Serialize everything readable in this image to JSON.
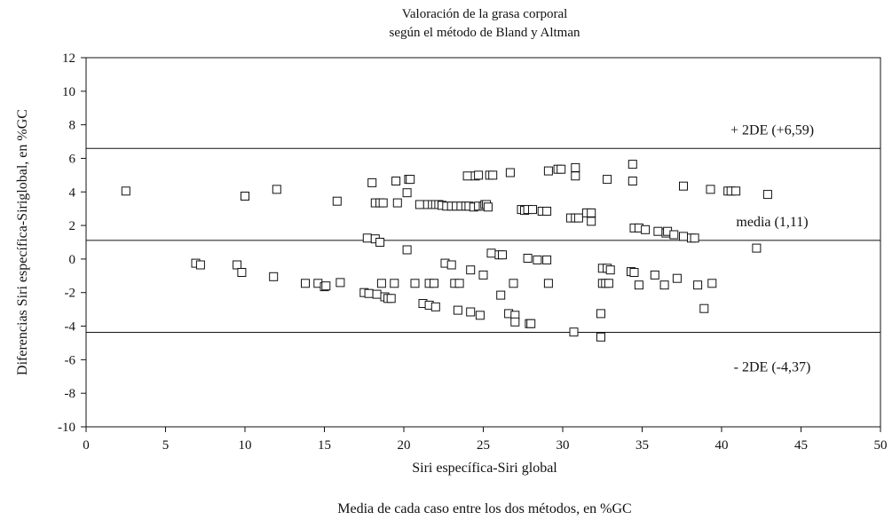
{
  "chart_data": {
    "type": "scatter",
    "title": "Valoración de la grasa corporal",
    "subtitle": "según el método de Bland y Altman",
    "xlabel": "Siri específica-Siri global",
    "ylabel": "Diferencias Siri específica-Siriglobal, en %GC",
    "caption": "Media de cada caso entre los dos métodos, en %GC",
    "xlim": [
      0,
      50
    ],
    "ylim": [
      -10,
      12
    ],
    "x_ticks": [
      "0",
      "5",
      "10",
      "15",
      "20",
      "25",
      "30",
      "35",
      "40",
      "45",
      "50"
    ],
    "y_ticks": [
      "12",
      "10",
      "8",
      "6",
      "4",
      "2",
      "0",
      "-2",
      "-4",
      "-6",
      "-8",
      "-10"
    ],
    "x_tick_values": [
      0,
      5,
      10,
      15,
      20,
      25,
      30,
      35,
      40,
      45,
      50
    ],
    "y_tick_values": [
      12,
      10,
      8,
      6,
      4,
      2,
      0,
      -2,
      -4,
      -6,
      -8,
      -10
    ],
    "grid": false,
    "marker": "open-square",
    "reference_lines": [
      {
        "label": "+ 2DE (+6,59)",
        "y": 6.59
      },
      {
        "label": "media (1,11)",
        "y": 1.11
      },
      {
        "label": "- 2DE (-4,37)",
        "y": -4.37
      }
    ],
    "points": [
      [
        2.5,
        4.05
      ],
      [
        6.9,
        -0.25
      ],
      [
        7.2,
        -0.35
      ],
      [
        9.5,
        -0.35
      ],
      [
        9.8,
        -0.8
      ],
      [
        10.0,
        3.75
      ],
      [
        11.8,
        -1.05
      ],
      [
        12.0,
        4.15
      ],
      [
        13.8,
        -1.45
      ],
      [
        14.6,
        -1.45
      ],
      [
        15.0,
        -1.65
      ],
      [
        15.1,
        -1.6
      ],
      [
        15.8,
        3.45
      ],
      [
        16.0,
        -1.4
      ],
      [
        17.5,
        -2.0
      ],
      [
        17.7,
        1.25
      ],
      [
        17.8,
        -2.05
      ],
      [
        18.0,
        4.55
      ],
      [
        18.2,
        1.2
      ],
      [
        18.2,
        3.35
      ],
      [
        18.3,
        -2.1
      ],
      [
        18.5,
        1.0
      ],
      [
        18.5,
        3.35
      ],
      [
        18.6,
        -1.45
      ],
      [
        18.7,
        3.35
      ],
      [
        18.8,
        -2.25
      ],
      [
        19.0,
        -2.35
      ],
      [
        19.2,
        -2.35
      ],
      [
        19.4,
        -1.45
      ],
      [
        19.5,
        4.65
      ],
      [
        19.6,
        3.35
      ],
      [
        20.2,
        3.95
      ],
      [
        20.2,
        0.55
      ],
      [
        20.3,
        4.75
      ],
      [
        20.4,
        4.75
      ],
      [
        20.7,
        -1.45
      ],
      [
        21.0,
        3.25
      ],
      [
        21.2,
        -2.65
      ],
      [
        21.5,
        3.25
      ],
      [
        21.6,
        -1.45
      ],
      [
        21.6,
        -2.75
      ],
      [
        21.8,
        3.25
      ],
      [
        21.9,
        -1.45
      ],
      [
        22.0,
        3.25
      ],
      [
        22.0,
        -2.85
      ],
      [
        22.2,
        3.25
      ],
      [
        22.4,
        3.2
      ],
      [
        22.6,
        -0.25
      ],
      [
        22.7,
        3.15
      ],
      [
        23.0,
        -0.35
      ],
      [
        23.0,
        3.15
      ],
      [
        23.2,
        -1.45
      ],
      [
        23.3,
        3.15
      ],
      [
        23.4,
        -3.05
      ],
      [
        23.5,
        -1.45
      ],
      [
        23.6,
        3.15
      ],
      [
        23.9,
        3.15
      ],
      [
        24.0,
        4.95
      ],
      [
        24.1,
        3.15
      ],
      [
        24.2,
        -0.65
      ],
      [
        24.2,
        -3.15
      ],
      [
        24.4,
        3.1
      ],
      [
        24.5,
        4.95
      ],
      [
        24.7,
        5.0
      ],
      [
        24.7,
        3.15
      ],
      [
        24.8,
        -3.35
      ],
      [
        25.0,
        3.15
      ],
      [
        25.0,
        -0.95
      ],
      [
        25.1,
        3.25
      ],
      [
        25.2,
        3.25
      ],
      [
        25.3,
        3.1
      ],
      [
        25.4,
        5.0
      ],
      [
        25.5,
        0.35
      ],
      [
        25.6,
        5.0
      ],
      [
        26.0,
        0.25
      ],
      [
        26.1,
        -2.15
      ],
      [
        26.2,
        0.25
      ],
      [
        26.6,
        -3.25
      ],
      [
        26.7,
        5.15
      ],
      [
        26.9,
        -1.45
      ],
      [
        27.0,
        -3.35
      ],
      [
        27.0,
        -3.75
      ],
      [
        27.4,
        2.95
      ],
      [
        27.6,
        2.9
      ],
      [
        27.8,
        2.95
      ],
      [
        27.8,
        0.05
      ],
      [
        27.9,
        -3.85
      ],
      [
        28.0,
        -3.85
      ],
      [
        28.1,
        2.95
      ],
      [
        28.4,
        -0.05
      ],
      [
        28.7,
        2.85
      ],
      [
        29.0,
        2.85
      ],
      [
        29.0,
        -0.05
      ],
      [
        29.1,
        -1.45
      ],
      [
        29.1,
        5.25
      ],
      [
        29.7,
        5.35
      ],
      [
        29.9,
        5.35
      ],
      [
        30.5,
        2.45
      ],
      [
        30.7,
        -4.35
      ],
      [
        30.8,
        2.45
      ],
      [
        30.8,
        4.95
      ],
      [
        30.8,
        5.45
      ],
      [
        31.0,
        2.45
      ],
      [
        31.5,
        2.75
      ],
      [
        31.8,
        2.75
      ],
      [
        31.8,
        2.25
      ],
      [
        32.4,
        -3.25
      ],
      [
        32.4,
        -4.65
      ],
      [
        32.5,
        -0.55
      ],
      [
        32.5,
        -1.45
      ],
      [
        32.7,
        -1.45
      ],
      [
        32.8,
        -0.55
      ],
      [
        32.8,
        4.75
      ],
      [
        32.9,
        -1.45
      ],
      [
        33.0,
        -0.65
      ],
      [
        34.3,
        -0.75
      ],
      [
        34.4,
        5.65
      ],
      [
        34.4,
        4.65
      ],
      [
        34.5,
        -0.8
      ],
      [
        34.5,
        1.85
      ],
      [
        34.8,
        1.85
      ],
      [
        34.8,
        -1.55
      ],
      [
        35.2,
        1.75
      ],
      [
        35.8,
        -0.95
      ],
      [
        36.0,
        1.65
      ],
      [
        36.4,
        -1.55
      ],
      [
        36.5,
        1.55
      ],
      [
        36.6,
        1.65
      ],
      [
        37.0,
        1.45
      ],
      [
        37.2,
        -1.15
      ],
      [
        37.6,
        4.35
      ],
      [
        37.6,
        1.35
      ],
      [
        38.1,
        1.25
      ],
      [
        38.3,
        1.25
      ],
      [
        38.5,
        -1.55
      ],
      [
        38.9,
        -2.95
      ],
      [
        39.3,
        4.15
      ],
      [
        39.4,
        -1.45
      ],
      [
        40.4,
        4.05
      ],
      [
        40.6,
        4.05
      ],
      [
        40.9,
        4.05
      ],
      [
        42.2,
        0.65
      ],
      [
        42.9,
        3.85
      ]
    ]
  }
}
